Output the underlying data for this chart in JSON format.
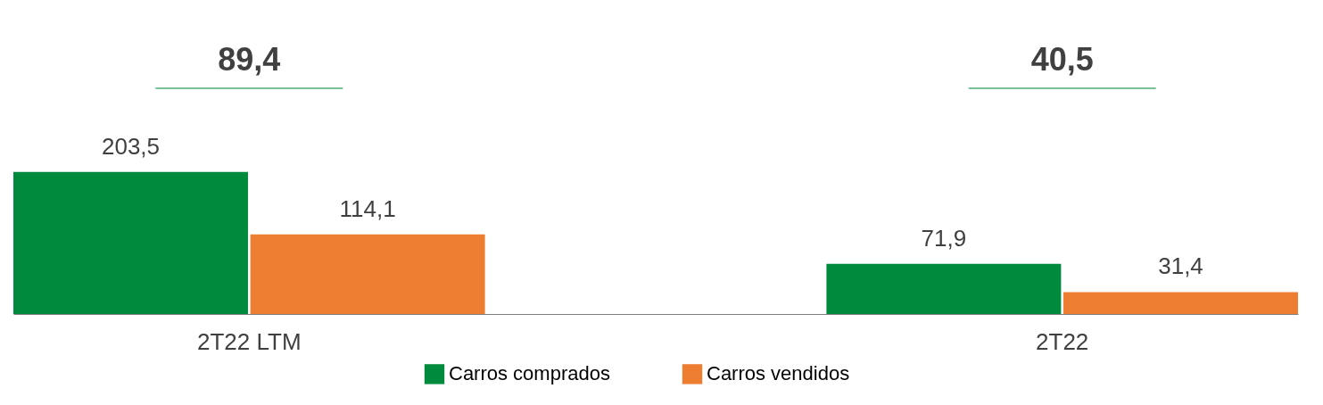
{
  "chart_data": {
    "type": "bar",
    "categories": [
      "2T22 LTM",
      "2T22"
    ],
    "series": [
      {
        "name": "Carros comprados",
        "color": "#008a3e",
        "values": [
          203.5,
          71.9
        ],
        "value_labels": [
          "203,5",
          "71,9"
        ]
      },
      {
        "name": "Carros vendidos",
        "color": "#ed7d31",
        "values": [
          114.1,
          31.4
        ],
        "value_labels": [
          "114,1",
          "31,4"
        ]
      }
    ],
    "annotations": [
      "89,4",
      "40,5"
    ],
    "legend": "bottom",
    "grid": false
  }
}
